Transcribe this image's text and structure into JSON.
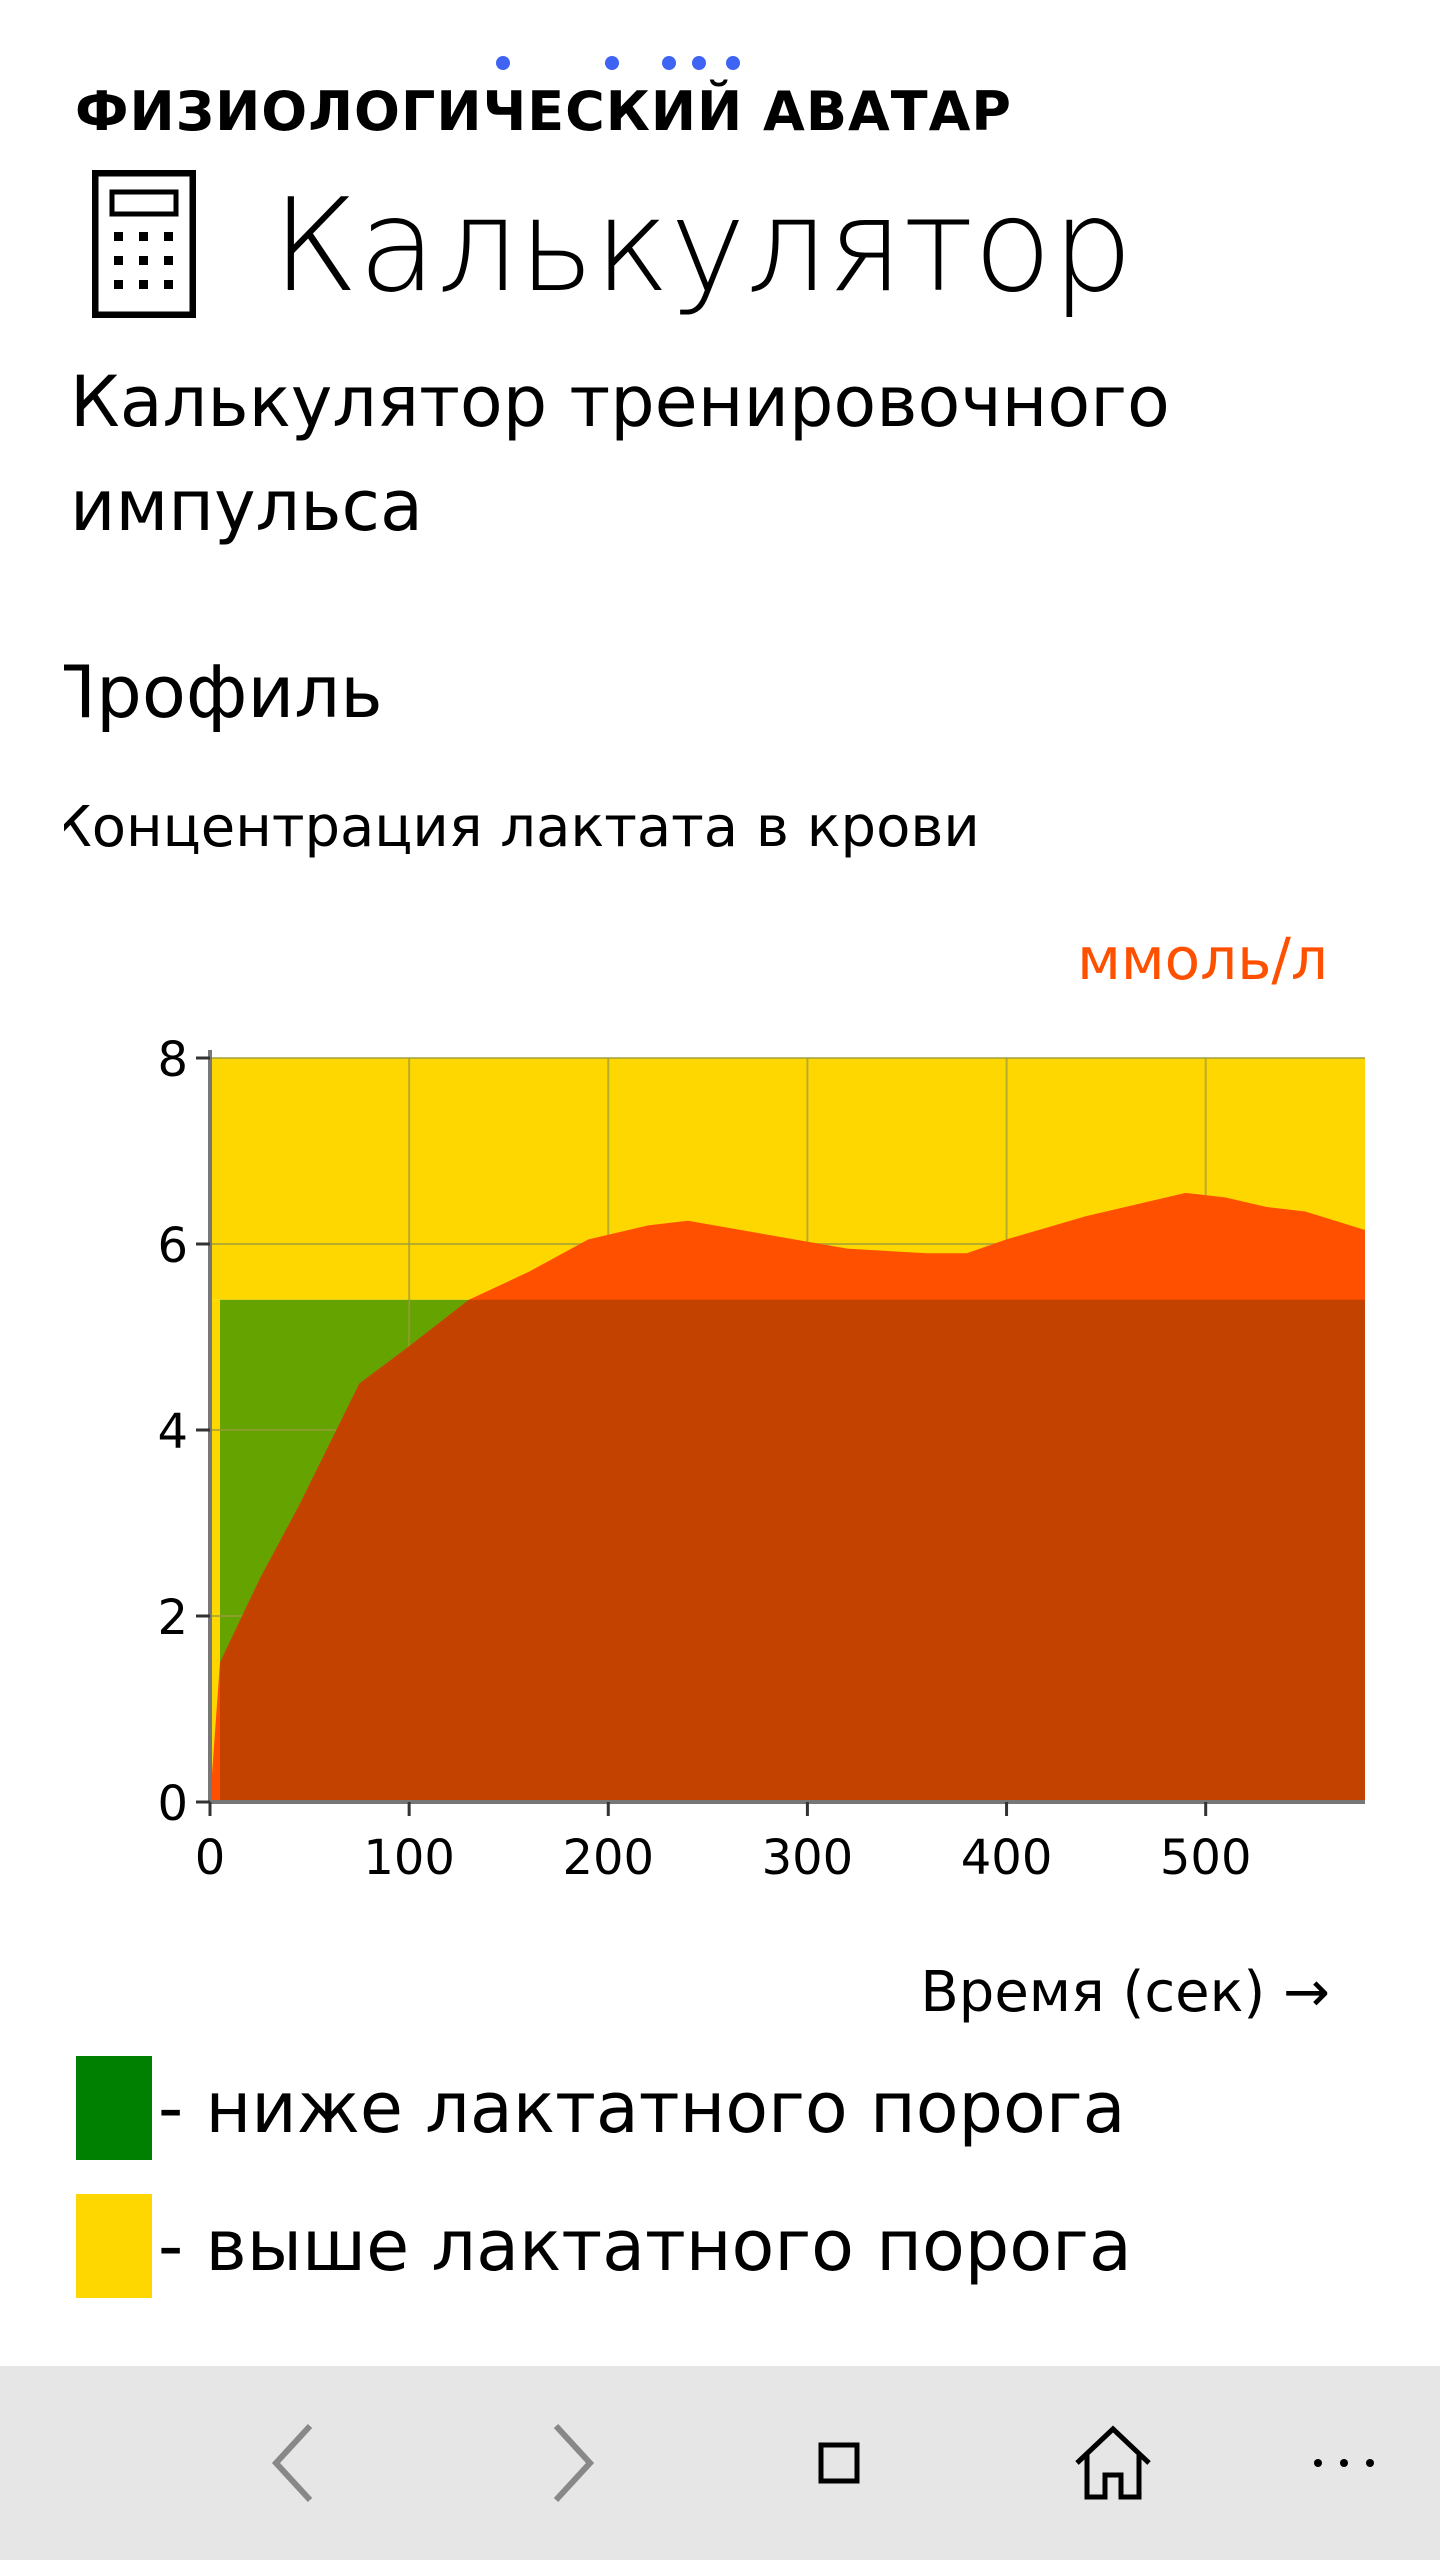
{
  "app": {
    "title": "ФИЗИОЛОГИЧЕСКИЙ АВАТАР"
  },
  "header": {
    "icon": "calculator-icon",
    "title": "Калькулятор"
  },
  "subtitle": "Калькулятор тренировочного импульса",
  "section": {
    "title": "Профиль",
    "chart_caption": "Концентрация лактата в крови"
  },
  "chart_data": {
    "type": "area",
    "ylabel": "ммоль/л",
    "xlabel": "Время (сек) →",
    "xlim": [
      0,
      580
    ],
    "ylim": [
      0,
      8
    ],
    "x_ticks": [
      0,
      100,
      200,
      300,
      400,
      500
    ],
    "y_ticks": [
      0,
      2,
      4,
      6,
      8
    ],
    "grid": true,
    "threshold": 5.4,
    "zones": [
      {
        "name": "ниже лактатного порога",
        "color": "#008000",
        "from": 0,
        "to": 5.4
      },
      {
        "name": "выше лактатного порога",
        "color": "#ffd700",
        "from": 5.4,
        "to": 8
      }
    ],
    "series": [
      {
        "color": "#ff5000",
        "x": [
          0,
          5,
          25,
          45,
          75,
          100,
          130,
          160,
          190,
          220,
          240,
          280,
          320,
          360,
          380,
          400,
          440,
          470,
          490,
          510,
          530,
          550,
          580
        ],
        "values": [
          0,
          1.5,
          2.4,
          3.2,
          4.5,
          4.9,
          5.4,
          5.7,
          6.05,
          6.2,
          6.25,
          6.1,
          5.95,
          5.9,
          5.9,
          6.05,
          6.3,
          6.45,
          6.55,
          6.5,
          6.4,
          6.35,
          6.15
        ]
      }
    ]
  },
  "legend": [
    {
      "color": "#008000",
      "label": "- ниже лактатного порога"
    },
    {
      "color": "#ffd700",
      "label": "- выше лактатного порога"
    }
  ],
  "nav": [
    {
      "icon": "back-icon"
    },
    {
      "icon": "forward-icon"
    },
    {
      "icon": "tabs-icon"
    },
    {
      "icon": "home-icon"
    },
    {
      "icon": "more-icon"
    }
  ]
}
